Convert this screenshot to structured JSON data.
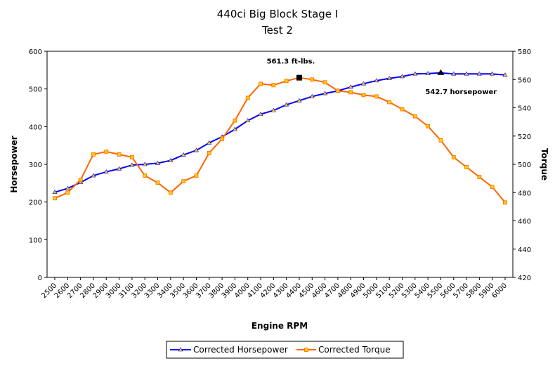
{
  "chart_data": {
    "type": "line",
    "title": "440ci Big Block Stage I",
    "subtitle": "Test 2",
    "xlabel": "Engine RPM",
    "ylabel_left": "Horsepower",
    "ylabel_right": "Torque",
    "ylim_left": [
      0,
      600
    ],
    "yticks_left": [
      "0",
      "100",
      "200",
      "300",
      "400",
      "500",
      "600"
    ],
    "ylim_right": [
      420,
      580
    ],
    "yticks_right": [
      "420",
      "440",
      "460",
      "480",
      "500",
      "520",
      "540",
      "560",
      "580"
    ],
    "categories": [
      "2500",
      "2600",
      "2700",
      "2800",
      "2900",
      "3000",
      "3100",
      "3200",
      "3300",
      "3400",
      "3500",
      "3600",
      "3700",
      "3800",
      "3900",
      "4000",
      "4100",
      "4200",
      "4300",
      "4400",
      "4500",
      "4600",
      "4700",
      "4800",
      "4900",
      "5000",
      "5100",
      "5200",
      "5300",
      "5400",
      "5500",
      "5600",
      "5700",
      "5800",
      "5900",
      "6000"
    ],
    "series": [
      {
        "name": "Corrected Horsepower",
        "axis": "left",
        "color": "#0000FF",
        "marker_color": "#FFCC00",
        "marker": "triangle",
        "values": [
          226,
          236,
          252,
          270,
          280,
          288,
          298,
          300,
          303,
          310,
          325,
          337,
          357,
          373,
          393,
          416,
          433,
          443,
          458,
          469,
          480,
          488,
          495,
          505,
          514,
          522,
          528,
          533,
          540,
          541,
          542.7,
          540,
          540,
          540,
          540,
          537
        ]
      },
      {
        "name": "Corrected Torque",
        "axis": "right",
        "color": "#FF6600",
        "marker_color": "#FFCC00",
        "marker": "square",
        "values": [
          476,
          480,
          489,
          507,
          509,
          507,
          505,
          492,
          487,
          480,
          488,
          492,
          508,
          518,
          531,
          547,
          557,
          556,
          559,
          561.3,
          560,
          558,
          552,
          551,
          549,
          548,
          544,
          539,
          534,
          527,
          517,
          505,
          498,
          491,
          484,
          473
        ]
      }
    ],
    "annotations": [
      {
        "text": "561.3 ft-lbs.",
        "series": "Corrected Torque",
        "x": "4400",
        "y": 561.3,
        "marker": "square",
        "color": "#000000"
      },
      {
        "text": "542.7 horsepower",
        "series": "Corrected Horsepower",
        "x": "5500",
        "y": 542.7,
        "marker": "triangle",
        "color": "#000000"
      }
    ],
    "grid": false,
    "legend": "bottom"
  }
}
